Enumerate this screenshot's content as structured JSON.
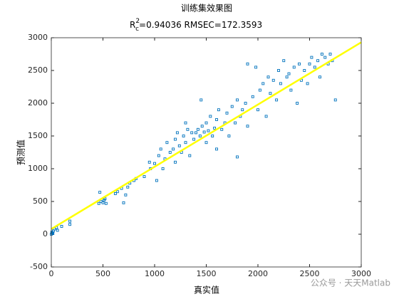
{
  "chart_data": {
    "type": "scatter",
    "title": "训练集效果图",
    "subtitle_parts": {
      "base": "R",
      "sup": "2",
      "sub": "c",
      "rest": "=0.94036  RMSEC=172.3593"
    },
    "xlabel": "真实值",
    "ylabel": "预测值",
    "watermark": "公众号 · 天天Matlab",
    "color": "#0072bd",
    "xlim": [
      0,
      3000
    ],
    "ylim": [
      -500,
      3000
    ],
    "xticks": [
      0,
      500,
      1000,
      1500,
      2000,
      2500,
      3000
    ],
    "yticks": [
      -500,
      0,
      500,
      1000,
      1500,
      2000,
      2500,
      3000
    ],
    "x": [
      0,
      5,
      10,
      20,
      30,
      50,
      100,
      180,
      180,
      60,
      15,
      460,
      470,
      480,
      500,
      510,
      520,
      530,
      620,
      640,
      680,
      700,
      720,
      740,
      760,
      800,
      820,
      900,
      950,
      960,
      1000,
      1020,
      1040,
      1060,
      1080,
      1100,
      1120,
      1150,
      1180,
      1200,
      1200,
      1220,
      1240,
      1260,
      1280,
      1300,
      1300,
      1320,
      1340,
      1360,
      1380,
      1400,
      1420,
      1440,
      1450,
      1460,
      1480,
      1500,
      1500,
      1520,
      1540,
      1560,
      1580,
      1600,
      1600,
      1620,
      1650,
      1680,
      1700,
      1720,
      1750,
      1780,
      1800,
      1800,
      1830,
      1850,
      1880,
      1900,
      1900,
      1950,
      1980,
      2000,
      2020,
      2050,
      2080,
      2100,
      2120,
      2150,
      2180,
      2200,
      2220,
      2250,
      2280,
      2300,
      2320,
      2350,
      2380,
      2400,
      2420,
      2450,
      2480,
      2500,
      2520,
      2550,
      2580,
      2600,
      2620,
      2650,
      2680,
      2700,
      2720,
      2750
    ],
    "values": [
      0,
      30,
      20,
      50,
      80,
      100,
      120,
      150,
      200,
      60,
      10,
      470,
      640,
      500,
      480,
      520,
      540,
      470,
      620,
      650,
      700,
      480,
      600,
      720,
      780,
      820,
      850,
      880,
      1100,
      1000,
      1080,
      820,
      1200,
      1300,
      1000,
      1150,
      1400,
      1250,
      1300,
      1450,
      1100,
      1550,
      1350,
      1250,
      1500,
      1700,
      1400,
      1600,
      1200,
      1550,
      1450,
      1550,
      1600,
      1500,
      2050,
      1650,
      1560,
      1700,
      1400,
      1580,
      1800,
      1500,
      1620,
      1750,
      1300,
      1900,
      1600,
      1700,
      1850,
      1500,
      1950,
      1700,
      2050,
      1180,
      1800,
      1900,
      2000,
      2600,
      1650,
      2100,
      2550,
      1900,
      2200,
      2300,
      1800,
      2400,
      2150,
      2350,
      2050,
      2500,
      2300,
      2650,
      2400,
      2450,
      2200,
      2550,
      2000,
      2600,
      2350,
      2500,
      2300,
      2600,
      2700,
      2550,
      2650,
      2400,
      2750,
      2700,
      2600,
      2750,
      2650,
      2050
    ],
    "fit_line": {
      "color": "#ffff00",
      "x": [
        0,
        3000
      ],
      "y": [
        80,
        2930
      ]
    }
  }
}
